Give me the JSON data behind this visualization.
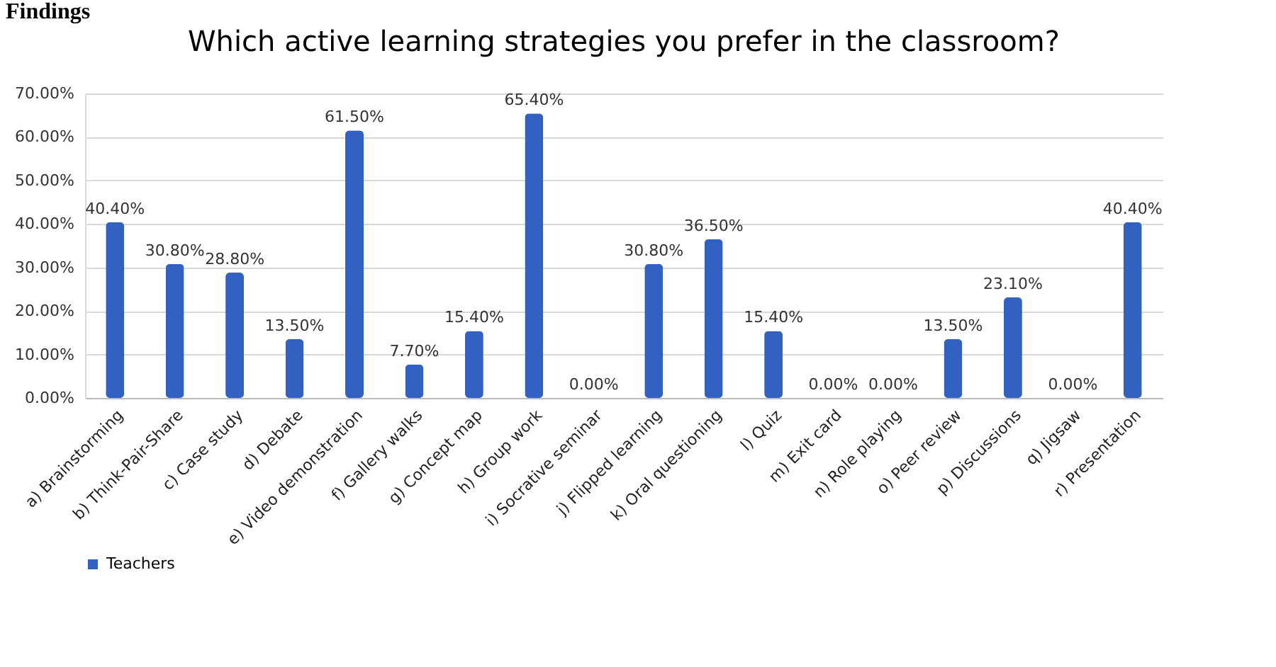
{
  "chart_data": {
    "type": "bar",
    "title": "Which active learning strategies you prefer in the classroom?",
    "annotations": [
      "Findings"
    ],
    "categories": [
      "a) Brainstorming",
      "b) Think-Pair-Share",
      "c) Case study",
      "d) Debate",
      "e) Video demonstration",
      "f) Gallery walks",
      "g) Concept map",
      "h) Group work",
      "i) Socrative seminar",
      "j) Flipped learning",
      "k) Oral questioning",
      "l) Quiz",
      "m) Exit card",
      "n) Role playing",
      "o) Peer review",
      "p) Discussions",
      "q) Jigsaw",
      "r) Presentation"
    ],
    "series": [
      {
        "name": "Teachers",
        "color": "#3361c2",
        "values": [
          40.4,
          30.8,
          28.8,
          13.5,
          61.5,
          7.7,
          15.4,
          65.4,
          0,
          30.8,
          36.5,
          15.4,
          0,
          0,
          13.5,
          23.1,
          0,
          40.4
        ],
        "value_labels": [
          "40.40%",
          "30.80%",
          "28.80%",
          "13.50%",
          "61.50%",
          "7.70%",
          "15.40%",
          "65.40%",
          "0.00%",
          "30.80%",
          "36.50%",
          "15.40%",
          "0.00%",
          "0.00%",
          "13.50%",
          "23.10%",
          "0.00%",
          "40.40%"
        ]
      }
    ],
    "ylim": [
      0,
      70
    ],
    "yticks": [
      {
        "value": 0,
        "label": "0.00%"
      },
      {
        "value": 10,
        "label": "10.00%"
      },
      {
        "value": 20,
        "label": "20.00%"
      },
      {
        "value": 30,
        "label": "30.00%"
      },
      {
        "value": 40,
        "label": "40.00%"
      },
      {
        "value": 50,
        "label": "50.00%"
      },
      {
        "value": 60,
        "label": "60.00%"
      },
      {
        "value": 70,
        "label": "70.00%"
      }
    ],
    "grid": true,
    "legend": "bottom"
  }
}
